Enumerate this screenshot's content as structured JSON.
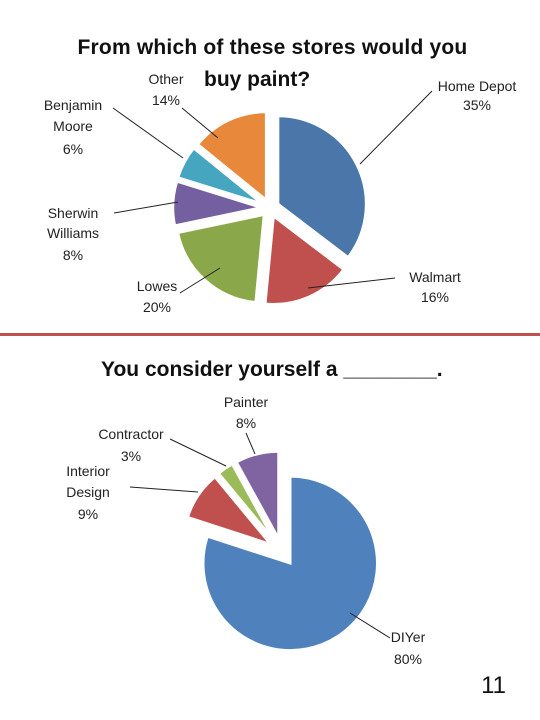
{
  "title_top_line1": "From which of these stores would you",
  "title_top_line2": "buy paint?",
  "title_bottom": "You consider yourself a ________.",
  "page_number": "11",
  "divider_color": "#c0504d",
  "chart_data": [
    {
      "type": "pie",
      "title": "From which of these stores would you buy paint?",
      "categories": [
        "Home Depot",
        "Walmart",
        "Lowes",
        "Sherwin Williams",
        "Benjamin Moore",
        "Other"
      ],
      "values": [
        35,
        16,
        20,
        8,
        6,
        14
      ],
      "labels": [
        "35%",
        "16%",
        "20%",
        "8%",
        "6%",
        "14%"
      ],
      "colors": [
        "#4a76aa",
        "#c0504d",
        "#8aa84a",
        "#7460a0",
        "#46a6c0",
        "#e8883a"
      ],
      "exploded": true,
      "legend": "none"
    },
    {
      "type": "pie",
      "title": "You consider yourself a ________.",
      "categories": [
        "DIYer",
        "Interior Design",
        "Contractor",
        "Painter"
      ],
      "values": [
        80,
        9,
        3,
        8
      ],
      "labels": [
        "80%",
        "9%",
        "3%",
        "8%"
      ],
      "colors": [
        "#4f81bd",
        "#c0504d",
        "#9bbb59",
        "#8064a2"
      ],
      "exploded": true,
      "legend": "none"
    }
  ]
}
